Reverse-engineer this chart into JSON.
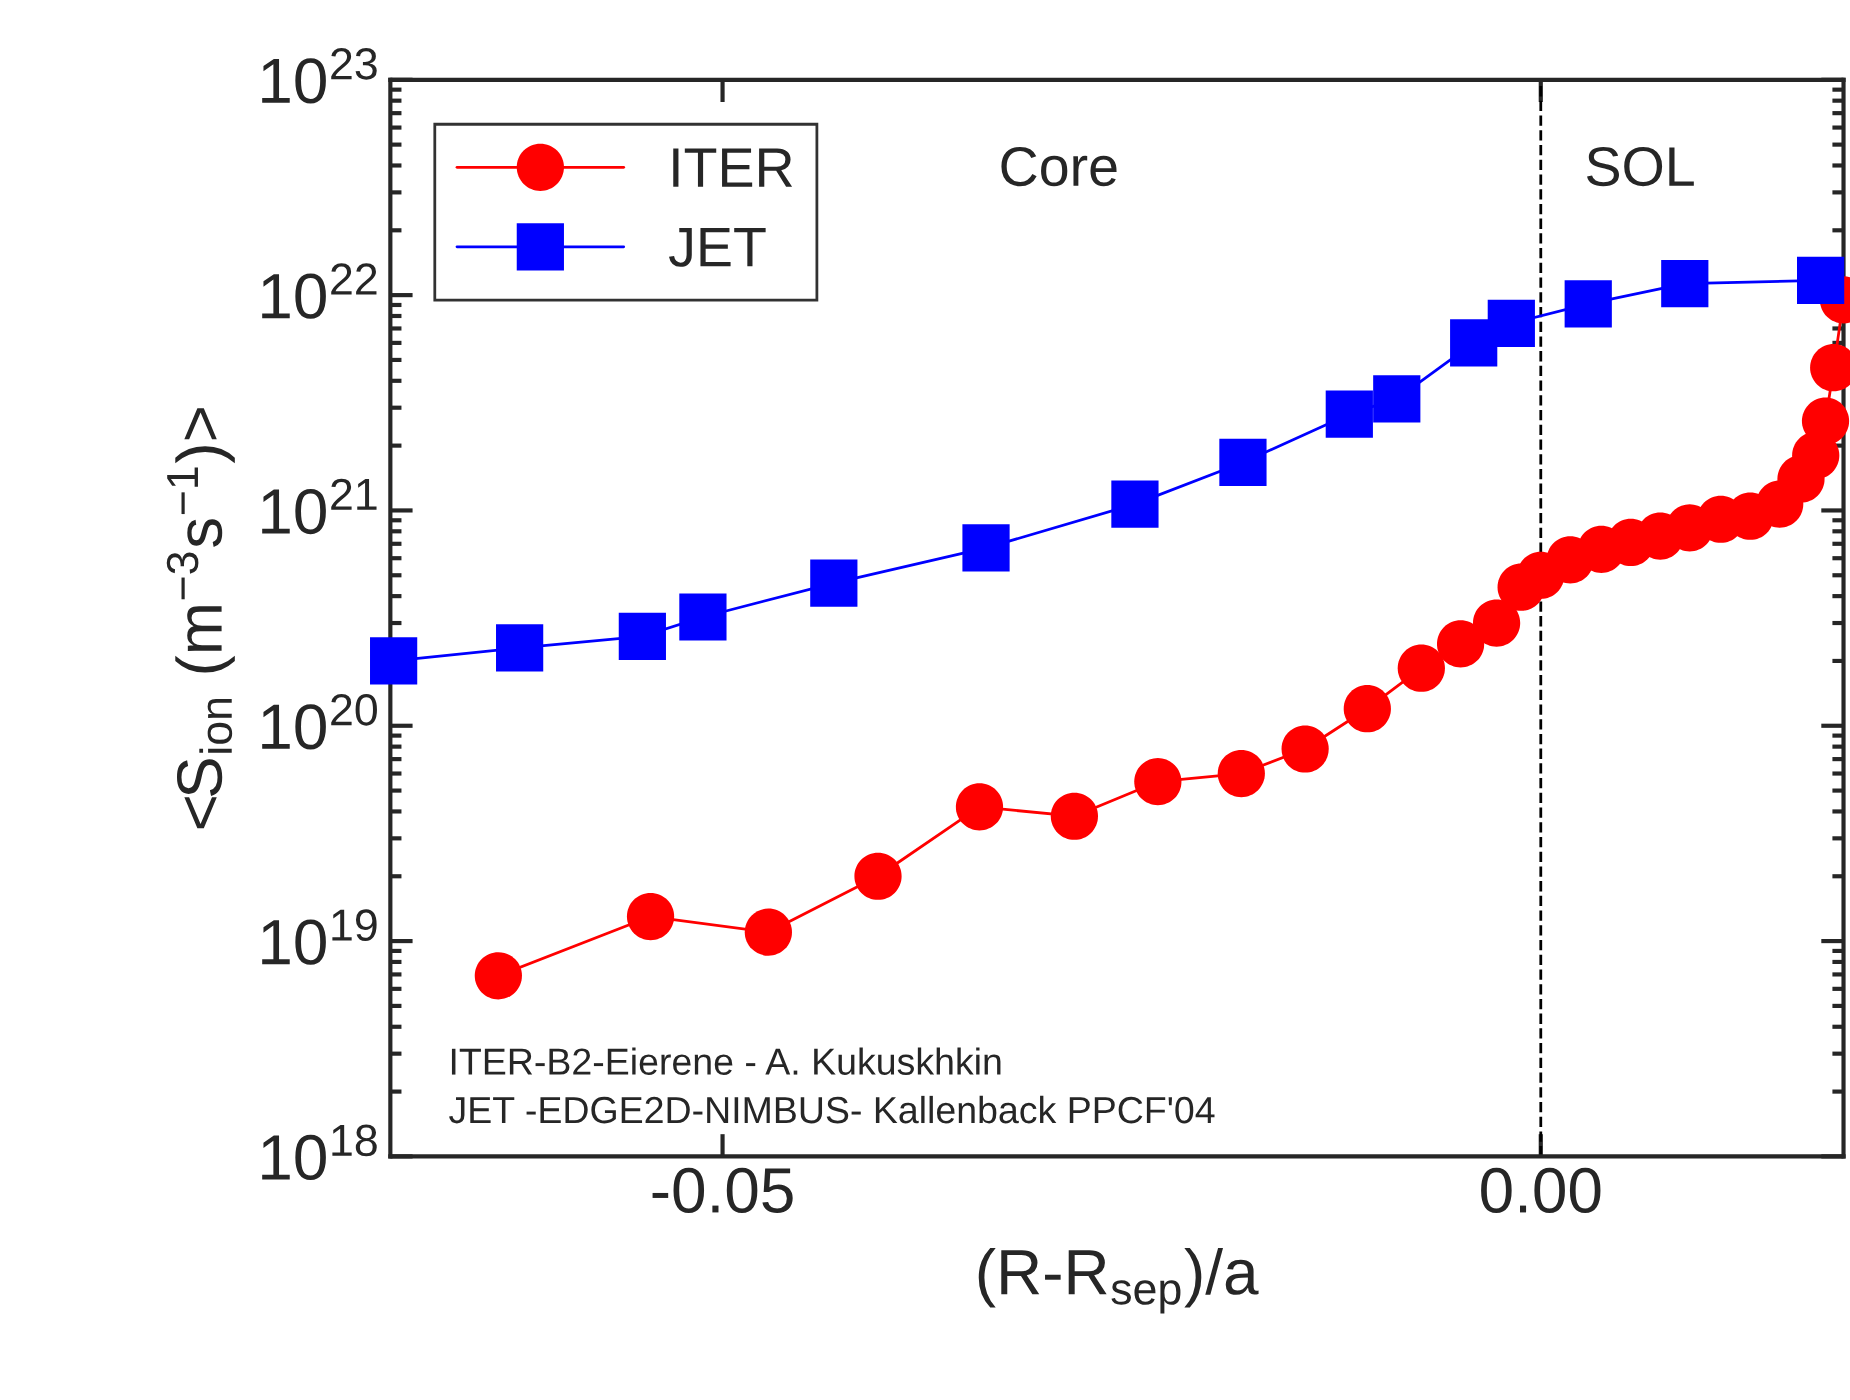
{
  "chart_data": {
    "type": "line",
    "xlabel": "(R-R$_{sep}$)/a",
    "ylabel": "<S$_{ion}$ (m$^{−3}$s$^{−1}$)>",
    "log": "y",
    "xlim": [
      -0.0703,
      0.0185
    ],
    "xticks": [
      {
        "value": -0.05,
        "label": "-0.05"
      },
      {
        "value": 0.0,
        "label": "0.00"
      }
    ],
    "ylim": [
      1e+18,
      1e+23
    ],
    "yticks": [
      {
        "value": 1e+18,
        "label": "10$^{18}$"
      },
      {
        "value": 1e+19,
        "label": "10$^{19}$"
      },
      {
        "value": 1e+20,
        "label": "10$^{20}$"
      },
      {
        "value": 1e+21,
        "label": "10$^{21}$"
      },
      {
        "value": 1e+22,
        "label": "10$^{22}$"
      },
      {
        "value": 1e+23,
        "label": "10$^{23}$"
      }
    ],
    "legend": "top left",
    "grid": false,
    "series": [
      {
        "name": "ITER",
        "color": "#ff0000",
        "marker": "circle",
        "x": [
          -0.0637,
          -0.0544,
          -0.0472,
          -0.0405,
          -0.0343,
          -0.0285,
          -0.0234,
          -0.0183,
          -0.0144,
          -0.0106,
          -0.0073,
          -0.0049,
          -0.0027,
          -0.0012,
          0.0,
          0.0018,
          0.0037,
          0.0055,
          0.0073,
          0.0091,
          0.011,
          0.0128,
          0.0146,
          0.0159,
          0.0168,
          0.0174,
          0.0179,
          0.0185
        ],
        "values": [
          6.9e+18,
          1.3e+19,
          1.1e+19,
          2e+19,
          4.2e+19,
          3.8e+19,
          5.5e+19,
          6e+19,
          7.8e+19,
          1.2e+20,
          1.85e+20,
          2.4e+20,
          3e+20,
          4.4e+20,
          5e+20,
          5.9e+20,
          6.6e+20,
          7.1e+20,
          7.6e+20,
          8.3e+20,
          9.1e+20,
          9.4e+20,
          1.07e+21,
          1.4e+21,
          1.8e+21,
          2.6e+21,
          4.6e+21,
          9.5e+21
        ]
      },
      {
        "name": "JET",
        "color": "#0000ff",
        "marker": "square",
        "x": [
          -0.0701,
          -0.0624,
          -0.0549,
          -0.0512,
          -0.0432,
          -0.0339,
          -0.0248,
          -0.0182,
          -0.0117,
          -0.0088,
          -0.0041,
          -0.0018,
          0.0029,
          0.0088,
          0.0171
        ],
        "values": [
          2e+20,
          2.3e+20,
          2.6e+20,
          3.2e+20,
          4.6e+20,
          6.7e+20,
          1.07e+21,
          1.67e+21,
          2.8e+21,
          3.3e+21,
          6e+21,
          7.4e+21,
          9.1e+21,
          1.13e+22,
          1.17e+22
        ]
      }
    ],
    "ref_lines": [
      {
        "axis": "x",
        "value": 0.0,
        "line_style": "dashed",
        "color": "#000000"
      }
    ],
    "annotations": [
      "Core",
      "SOL",
      "ITER-B2-Eierene - A. Kukuskhkin",
      "JET -EDGE2D-NIMBUS- Kallenback PPCF'04"
    ]
  }
}
